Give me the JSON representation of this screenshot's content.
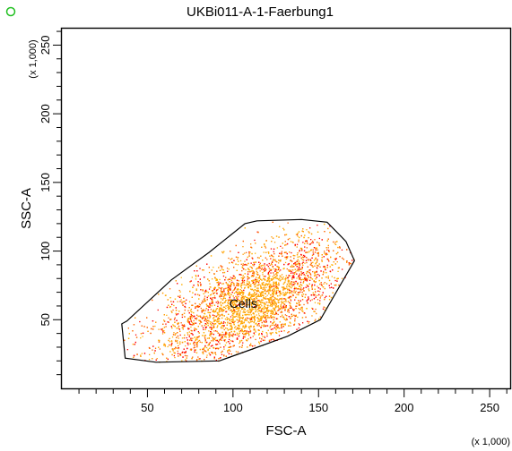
{
  "header": {
    "status_icon": "green-circle-icon",
    "status_color": "#22c022"
  },
  "chart_data": {
    "type": "scatter",
    "title": "UKBi011-A-1-Faerbung1",
    "xlabel": "FSC-A",
    "ylabel": "SSC-A",
    "x_multiplier": "(x 1,000)",
    "y_multiplier": "(x 1,000)",
    "xlim": [
      0,
      262
    ],
    "ylim": [
      0,
      262
    ],
    "x_major_ticks": [
      50,
      100,
      150,
      200,
      250
    ],
    "y_major_ticks": [
      50,
      100,
      150,
      200,
      250
    ],
    "minor_tick_step": 10,
    "gate": {
      "name": "Cells",
      "label_position": [
        106,
        62
      ],
      "polygon": [
        [
          35,
          47
        ],
        [
          37,
          22
        ],
        [
          55,
          19
        ],
        [
          92,
          20
        ],
        [
          110,
          28
        ],
        [
          132,
          38
        ],
        [
          151,
          50
        ],
        [
          171,
          93
        ],
        [
          166,
          107
        ],
        [
          155,
          121
        ],
        [
          140,
          123
        ],
        [
          114,
          122
        ],
        [
          107,
          120
        ],
        [
          86,
          99
        ],
        [
          64,
          79
        ],
        [
          38,
          49
        ]
      ]
    },
    "events": {
      "count": 5200,
      "center": [
        110,
        62
      ],
      "long_axis_sd": 32,
      "short_axis_sd": 16,
      "angle_deg": 38,
      "colors": [
        "#ff0000",
        "#ff6600",
        "#ff9900",
        "#ffb000"
      ],
      "core_color": "#ffa500"
    }
  }
}
